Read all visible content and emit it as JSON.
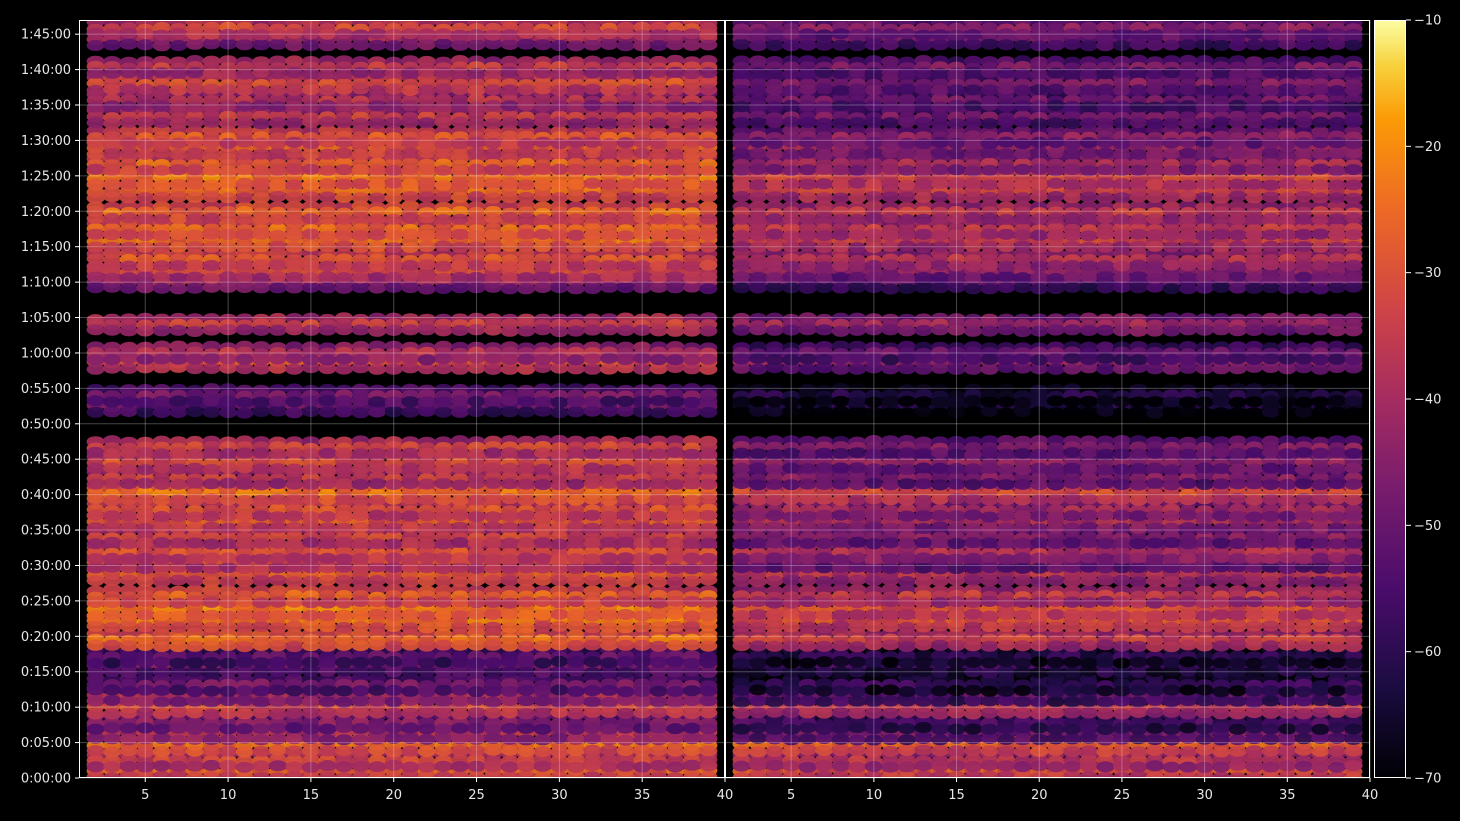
{
  "chart_data": {
    "type": "heatmap",
    "panels": [
      {
        "name": "left",
        "x_range": [
          1,
          40
        ],
        "x_ticks": [
          5,
          10,
          15,
          20,
          25,
          30,
          35,
          40
        ],
        "x_tick_labels": [
          "5",
          "10",
          "15",
          "20",
          "25",
          "30",
          "35",
          "40"
        ]
      },
      {
        "name": "right",
        "x_range": [
          1,
          40
        ],
        "x_ticks": [
          5,
          10,
          15,
          20,
          25,
          30,
          35,
          40
        ],
        "x_tick_labels": [
          "5",
          "10",
          "15",
          "20",
          "25",
          "30",
          "35",
          "40"
        ]
      }
    ],
    "y_range_seconds": [
      0,
      6420
    ],
    "y_ticks_seconds": [
      0,
      300,
      600,
      900,
      1200,
      1500,
      1800,
      2100,
      2400,
      2700,
      3000,
      3300,
      3600,
      3900,
      4200,
      4500,
      4800,
      5100,
      5400,
      5700,
      6000,
      6300
    ],
    "y_tick_labels": [
      "0:00:00",
      "0:05:00",
      "0:10:00",
      "0:15:00",
      "0:20:00",
      "0:25:00",
      "0:30:00",
      "0:35:00",
      "0:40:00",
      "0:45:00",
      "0:50:00",
      "0:55:00",
      "1:00:00",
      "1:05:00",
      "1:10:00",
      "1:15:00",
      "1:20:00",
      "1:25:00",
      "1:30:00",
      "1:35:00",
      "1:40:00",
      "1:45:00"
    ],
    "colorbar": {
      "range": [
        -70,
        -10
      ],
      "ticks": [
        -10,
        -20,
        -30,
        -40,
        -50,
        -60,
        -70
      ],
      "tick_labels": [
        "−10",
        "−20",
        "−30",
        "−40",
        "−50",
        "−60",
        "−70"
      ],
      "colormap": "inferno"
    },
    "grid": true,
    "bands": [
      {
        "t": 60,
        "left": -27,
        "right": -29
      },
      {
        "t": 150,
        "left": -33,
        "right": -37
      },
      {
        "t": 280,
        "left": -25,
        "right": -27
      },
      {
        "t": 380,
        "left": -38,
        "right": -48
      },
      {
        "t": 470,
        "left": -45,
        "right": -55
      },
      {
        "t": 600,
        "left": -31,
        "right": -35
      },
      {
        "t": 700,
        "left": -40,
        "right": -52
      },
      {
        "t": 790,
        "left": -48,
        "right": -58
      },
      {
        "t": 950,
        "left": -48,
        "right": -56
      },
      {
        "t": 1030,
        "left": -51,
        "right": -60
      },
      {
        "t": 1170,
        "left": -25,
        "right": -34
      },
      {
        "t": 1330,
        "left": -24,
        "right": -30
      },
      {
        "t": 1430,
        "left": -22,
        "right": -30
      },
      {
        "t": 1540,
        "left": -27,
        "right": -35
      },
      {
        "t": 1720,
        "left": -28,
        "right": -37
      },
      {
        "t": 1830,
        "left": -33,
        "right": -46
      },
      {
        "t": 1910,
        "left": -30,
        "right": -38
      },
      {
        "t": 2040,
        "left": -33,
        "right": -45
      },
      {
        "t": 2170,
        "left": -29,
        "right": -40
      },
      {
        "t": 2270,
        "left": -30,
        "right": -41
      },
      {
        "t": 2410,
        "left": -24,
        "right": -31
      },
      {
        "t": 2540,
        "left": -35,
        "right": -46
      },
      {
        "t": 2670,
        "left": -31,
        "right": -44
      },
      {
        "t": 2800,
        "left": -33,
        "right": -46
      },
      {
        "t": 3150,
        "left": -50,
        "right": -63
      },
      {
        "t": 3240,
        "left": -48,
        "right": -62
      },
      {
        "t": 3520,
        "left": -31,
        "right": -44
      },
      {
        "t": 3600,
        "left": -38,
        "right": -50
      },
      {
        "t": 3840,
        "left": -34,
        "right": -41
      },
      {
        "t": 4200,
        "left": -42,
        "right": -51
      },
      {
        "t": 4290,
        "left": -33,
        "right": -44
      },
      {
        "t": 4390,
        "left": -29,
        "right": -37
      },
      {
        "t": 4550,
        "left": -25,
        "right": -34
      },
      {
        "t": 4650,
        "left": -26,
        "right": -36
      },
      {
        "t": 4790,
        "left": -26,
        "right": -35
      },
      {
        "t": 4970,
        "left": -26,
        "right": -34
      },
      {
        "t": 5080,
        "left": -23,
        "right": -32
      },
      {
        "t": 5200,
        "left": -27,
        "right": -40
      },
      {
        "t": 5340,
        "left": -28,
        "right": -42
      },
      {
        "t": 5430,
        "left": -29,
        "right": -44
      },
      {
        "t": 5600,
        "left": -35,
        "right": -48
      },
      {
        "t": 5740,
        "left": -38,
        "right": -49
      },
      {
        "t": 5880,
        "left": -30,
        "right": -46
      },
      {
        "t": 6020,
        "left": -35,
        "right": -47
      },
      {
        "t": 6260,
        "left": -41,
        "right": -49
      },
      {
        "t": 6350,
        "left": -32,
        "right": -45
      }
    ]
  }
}
